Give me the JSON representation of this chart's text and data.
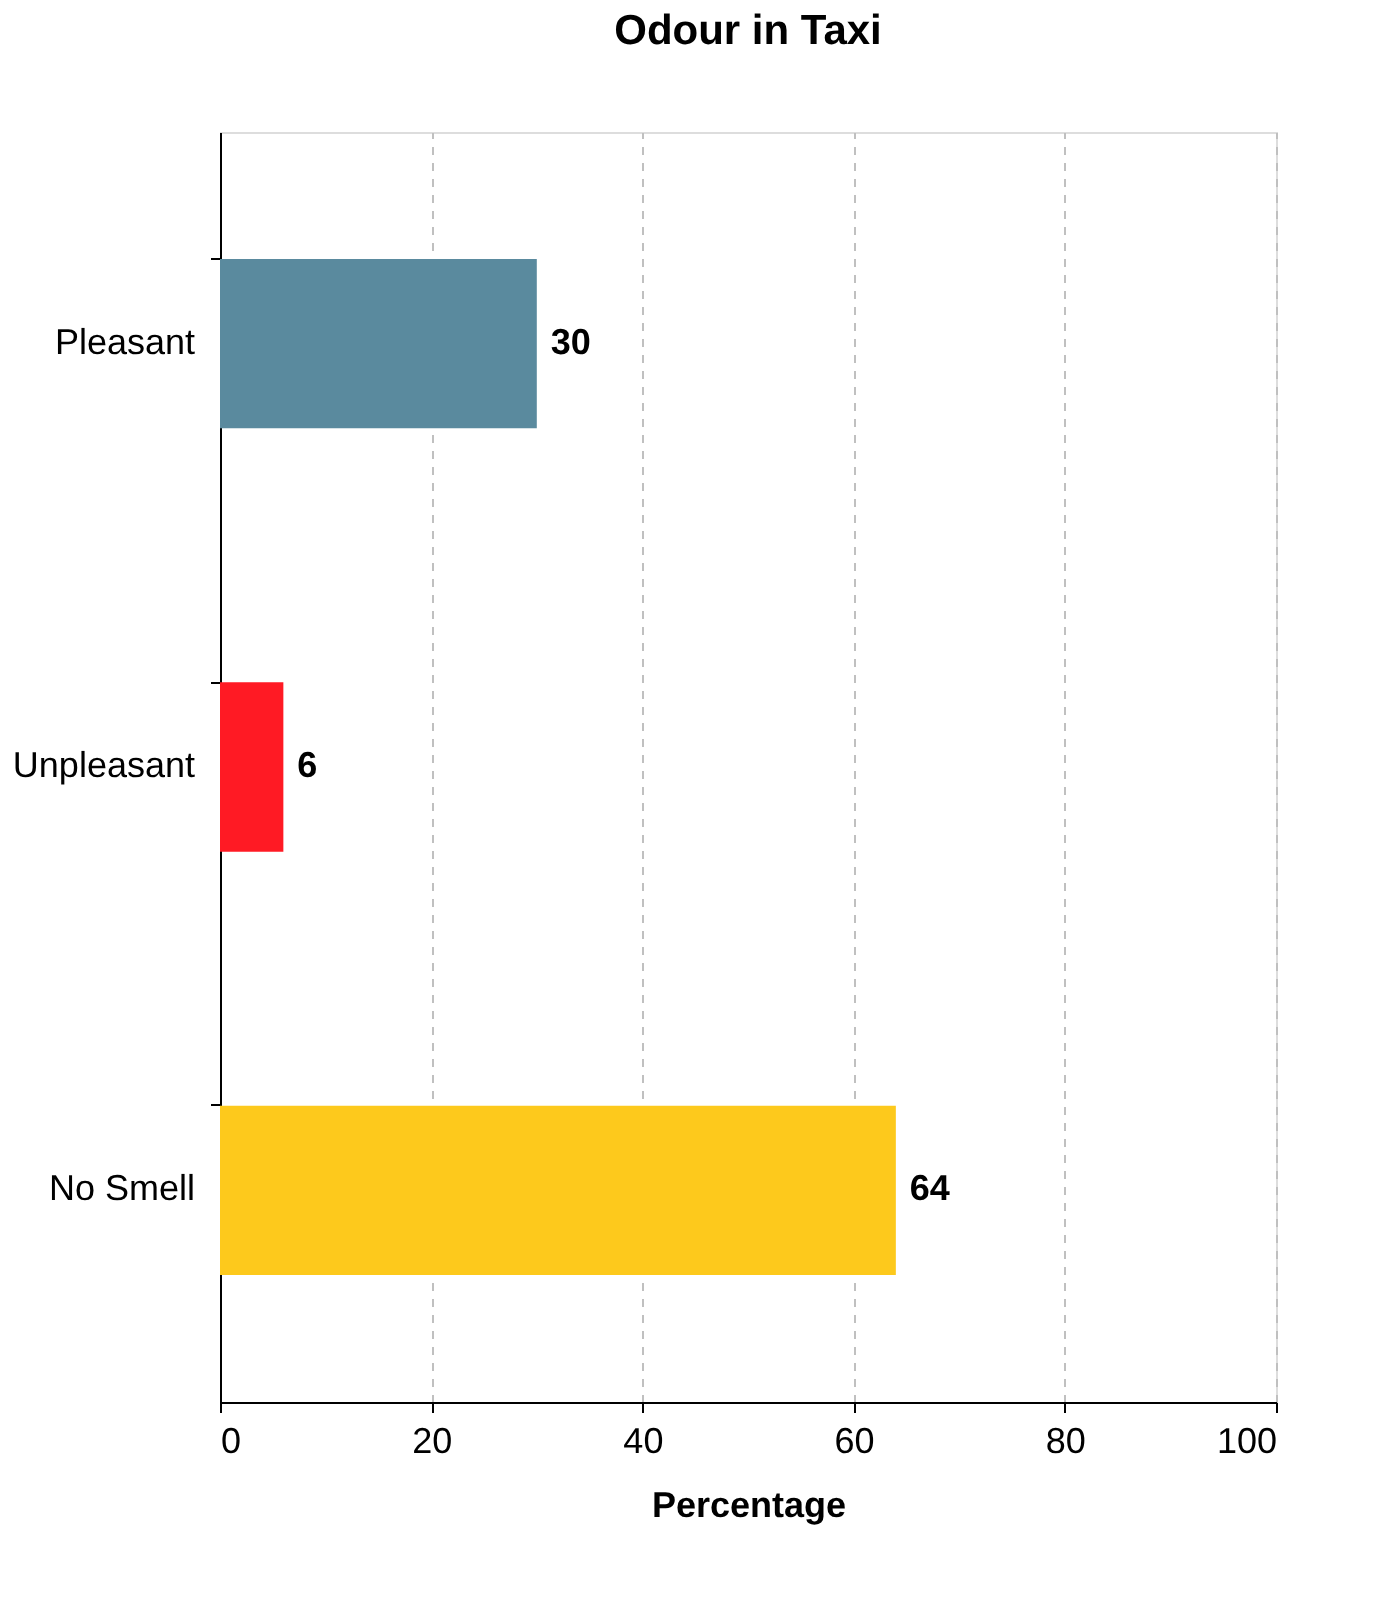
{
  "chart_data": {
    "type": "bar",
    "orientation": "horizontal",
    "title": "Odour in Taxi",
    "xlabel": "Percentage",
    "categories": [
      "Pleasant",
      "Unpleasant",
      "No Smell"
    ],
    "values": [
      30,
      6,
      64
    ],
    "colors": [
      "#5a8a9e",
      "#ff1a24",
      "#fdc91c"
    ],
    "xlim": [
      0,
      100
    ],
    "xticks": [
      0,
      20,
      40,
      60,
      80,
      100
    ],
    "grid": "x",
    "data_labels": true
  }
}
